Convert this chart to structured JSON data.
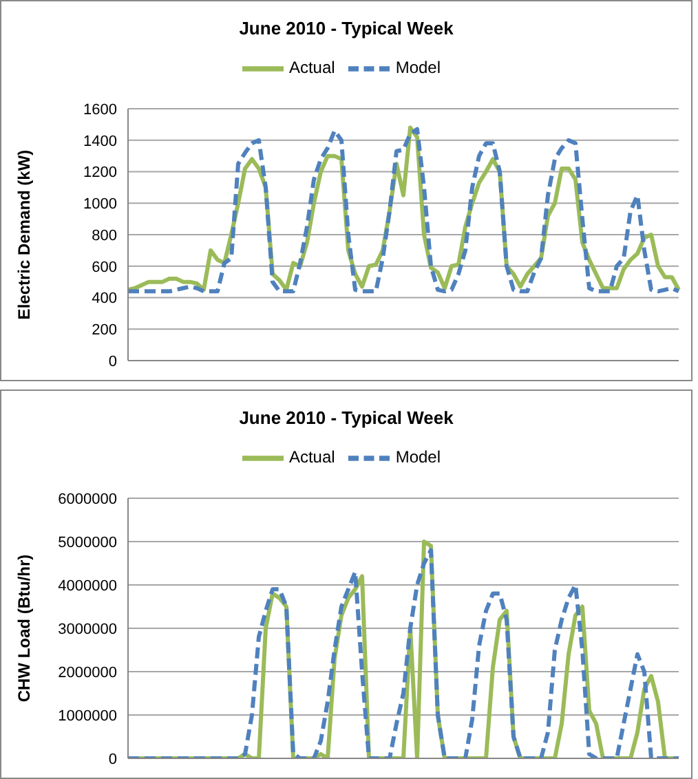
{
  "chart_data": [
    {
      "type": "line",
      "title": "June 2010 - Typical Week",
      "ylabel": "Electric Demand (kW)",
      "categories": [
        null,
        null,
        null,
        null,
        null,
        null,
        null,
        null,
        null,
        null,
        null,
        null,
        null,
        null,
        null,
        null,
        null,
        null,
        null,
        null,
        null,
        null,
        null,
        null,
        null,
        null,
        null,
        null,
        null,
        null,
        null,
        null,
        null,
        null,
        null,
        null,
        null,
        null,
        null,
        null,
        null,
        null,
        null,
        null,
        null,
        null,
        null,
        null,
        null,
        null,
        null,
        null,
        null,
        null,
        null,
        null,
        null,
        null,
        null,
        null,
        null,
        null,
        null,
        null,
        null,
        null,
        null,
        null,
        null,
        null,
        null,
        null,
        null,
        null,
        null,
        null,
        null,
        null,
        null,
        null,
        null
      ],
      "ylim": [
        0,
        1600
      ],
      "yticks": [
        0,
        200,
        400,
        600,
        800,
        1000,
        1200,
        1400,
        1600
      ],
      "grid": "y",
      "legend": "top",
      "series": [
        {
          "name": "Actual",
          "color": "#9bbb59",
          "line_style": "solid",
          "values": [
            450,
            460,
            480,
            500,
            500,
            500,
            520,
            520,
            500,
            500,
            490,
            450,
            700,
            640,
            620,
            800,
            1000,
            1220,
            1280,
            1220,
            1100,
            550,
            510,
            450,
            620,
            600,
            750,
            1000,
            1200,
            1300,
            1300,
            1280,
            700,
            550,
            470,
            600,
            610,
            700,
            950,
            1250,
            1050,
            1480,
            1420,
            800,
            590,
            560,
            460,
            600,
            610,
            850,
            1000,
            1130,
            1200,
            1280,
            1200,
            600,
            550,
            470,
            550,
            600,
            650,
            920,
            1000,
            1220,
            1220,
            1150,
            750,
            640,
            550,
            460,
            460,
            460,
            580,
            640,
            680,
            780,
            800,
            600,
            530,
            530,
            450
          ]
        },
        {
          "name": "Model",
          "color": "#4f81bd",
          "line_style": "dashed",
          "values": [
            440,
            440,
            440,
            440,
            440,
            440,
            440,
            450,
            460,
            470,
            460,
            440,
            440,
            440,
            620,
            650,
            1250,
            1320,
            1380,
            1400,
            1100,
            500,
            440,
            440,
            440,
            620,
            850,
            1150,
            1280,
            1350,
            1460,
            1400,
            800,
            450,
            440,
            440,
            440,
            650,
            950,
            1330,
            1340,
            1440,
            1470,
            1100,
            600,
            450,
            440,
            450,
            550,
            700,
            1100,
            1300,
            1380,
            1380,
            1200,
            600,
            450,
            440,
            440,
            560,
            650,
            1050,
            1280,
            1350,
            1400,
            1380,
            900,
            460,
            440,
            440,
            440,
            600,
            650,
            950,
            1050,
            700,
            450,
            440,
            450,
            460,
            440
          ]
        }
      ]
    },
    {
      "type": "line",
      "title": "June 2010 - Typical Week",
      "ylabel": "CHW Load (Btu/hr)",
      "categories": [
        null,
        null,
        null,
        null,
        null,
        null,
        null,
        null,
        null,
        null,
        null,
        null,
        null,
        null,
        null,
        null,
        null,
        null,
        null,
        null,
        null,
        null,
        null,
        null,
        null,
        null,
        null,
        null,
        null,
        null,
        null,
        null,
        null,
        null,
        null,
        null,
        null,
        null,
        null,
        null,
        null,
        null,
        null,
        null,
        null,
        null,
        null,
        null,
        null,
        null,
        null,
        null,
        null,
        null,
        null,
        null,
        null,
        null,
        null,
        null,
        null,
        null,
        null,
        null,
        null,
        null,
        null,
        null,
        null,
        null,
        null,
        null,
        null,
        null,
        null,
        null,
        null,
        null,
        null,
        null,
        null
      ],
      "ylim": [
        0,
        6000000
      ],
      "yticks": [
        0,
        1000000,
        2000000,
        3000000,
        4000000,
        5000000,
        6000000
      ],
      "grid": "y",
      "legend": "top",
      "series": [
        {
          "name": "Actual",
          "color": "#9bbb59",
          "line_style": "solid",
          "values": [
            0,
            0,
            0,
            0,
            0,
            0,
            0,
            0,
            0,
            0,
            0,
            0,
            0,
            0,
            0,
            0,
            0,
            100000,
            0,
            0,
            3000000,
            3800000,
            3700000,
            3500000,
            0,
            0,
            0,
            0,
            100000,
            0,
            2300000,
            3300000,
            3700000,
            3900000,
            4200000,
            0,
            0,
            0,
            0,
            0,
            0,
            3000000,
            0,
            5000000,
            4900000,
            1000000,
            0,
            0,
            0,
            0,
            0,
            0,
            0,
            2100000,
            3200000,
            3400000,
            500000,
            0,
            0,
            0,
            0,
            0,
            0,
            800000,
            2400000,
            3300000,
            3500000,
            1100000,
            800000,
            0,
            0,
            0,
            0,
            0,
            600000,
            1600000,
            1900000,
            1300000,
            0,
            0,
            0
          ]
        },
        {
          "name": "Model",
          "color": "#4f81bd",
          "line_style": "dashed",
          "values": [
            0,
            0,
            0,
            0,
            0,
            0,
            0,
            0,
            0,
            0,
            0,
            0,
            0,
            0,
            0,
            0,
            0,
            100000,
            1000000,
            2800000,
            3400000,
            3900000,
            3900000,
            3500000,
            100000,
            0,
            0,
            0,
            400000,
            1300000,
            2500000,
            3500000,
            3900000,
            4300000,
            2000000,
            0,
            0,
            0,
            0,
            800000,
            1500000,
            3000000,
            4000000,
            4500000,
            4800000,
            1000000,
            0,
            0,
            0,
            0,
            900000,
            2600000,
            3400000,
            3800000,
            3800000,
            3200000,
            500000,
            0,
            0,
            0,
            0,
            600000,
            2500000,
            3200000,
            3700000,
            4000000,
            2500000,
            100000,
            0,
            0,
            0,
            0,
            800000,
            1600000,
            2400000,
            2000000,
            0,
            0,
            0,
            0,
            0
          ]
        }
      ]
    }
  ]
}
